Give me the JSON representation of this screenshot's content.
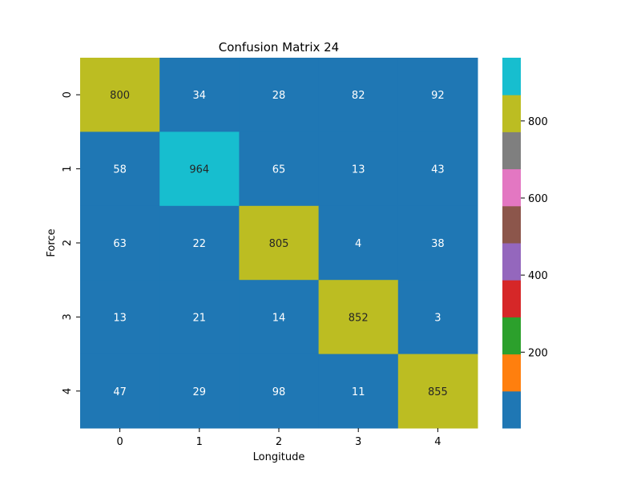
{
  "chart_data": {
    "type": "heatmap",
    "title": "Confusion Matrix 24",
    "xlabel": "Longitude",
    "ylabel": "Force",
    "x_categories": [
      "0",
      "1",
      "2",
      "3",
      "4"
    ],
    "y_categories": [
      "0",
      "1",
      "2",
      "3",
      "4"
    ],
    "values": [
      [
        800,
        34,
        28,
        82,
        92
      ],
      [
        58,
        964,
        65,
        13,
        43
      ],
      [
        63,
        22,
        805,
        4,
        38
      ],
      [
        13,
        21,
        14,
        852,
        3
      ],
      [
        47,
        29,
        98,
        11,
        855
      ]
    ],
    "colormap": {
      "name": "tab10",
      "colors": [
        "#1f77b4",
        "#ff7f0e",
        "#2ca02c",
        "#d62728",
        "#9467bd",
        "#8c564b",
        "#e377c2",
        "#7f7f7f",
        "#bcbd22",
        "#17becf"
      ],
      "vmin": 3,
      "vmax": 964
    },
    "colorbar_ticks": [
      200,
      400,
      600,
      800
    ],
    "annotation_colors": {
      "dark_cell_text": "#ffffff",
      "light_cell_text": "#262626"
    }
  }
}
